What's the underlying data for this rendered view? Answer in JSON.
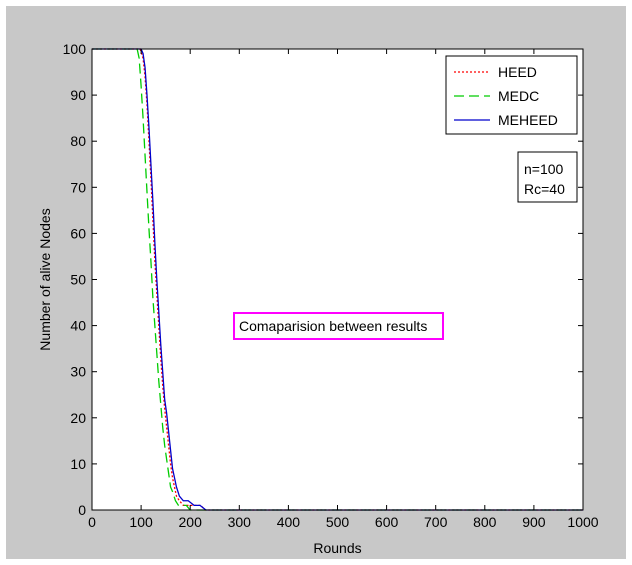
{
  "chart_data": {
    "type": "line",
    "title": "",
    "xlabel": "Rounds",
    "ylabel": "Number of alive Nodes",
    "xlim": [
      0,
      1000
    ],
    "ylim": [
      0,
      100
    ],
    "xticks": [
      0,
      100,
      200,
      300,
      400,
      500,
      600,
      700,
      800,
      900,
      1000
    ],
    "yticks": [
      0,
      10,
      20,
      30,
      40,
      50,
      60,
      70,
      80,
      90,
      100
    ],
    "grid": false,
    "legend_position": "top-right",
    "series": [
      {
        "name": "HEED",
        "color": "#ff0000",
        "dash": "dotted",
        "x": [
          0,
          98,
          104,
          108,
          112,
          116,
          120,
          124,
          128,
          132,
          136,
          140,
          144,
          148,
          152,
          156,
          160,
          164,
          168,
          172,
          178,
          186,
          196,
          210,
          222,
          230,
          1000
        ],
        "y": [
          100,
          100,
          98,
          94,
          88,
          80,
          72,
          63,
          54,
          47,
          40,
          33,
          27,
          22,
          18,
          14,
          10,
          7,
          5,
          3,
          2,
          1,
          1,
          1,
          1,
          0,
          0
        ]
      },
      {
        "name": "MEDC",
        "color": "#00cc00",
        "dash": "dashed",
        "x": [
          0,
          92,
          96,
          100,
          104,
          108,
          112,
          116,
          120,
          124,
          128,
          132,
          136,
          140,
          144,
          148,
          152,
          156,
          160,
          164,
          170,
          176,
          184,
          192,
          200,
          1000
        ],
        "y": [
          100,
          100,
          98,
          92,
          85,
          77,
          69,
          61,
          54,
          46,
          40,
          34,
          28,
          23,
          18,
          14,
          11,
          8,
          5,
          4,
          2,
          1,
          1,
          1,
          0,
          0
        ]
      },
      {
        "name": "MEHEED",
        "color": "#0000cc",
        "dash": "solid",
        "x": [
          0,
          100,
          104,
          108,
          112,
          116,
          120,
          124,
          128,
          132,
          136,
          140,
          144,
          148,
          152,
          156,
          160,
          164,
          168,
          172,
          178,
          186,
          196,
          208,
          220,
          232,
          1000
        ],
        "y": [
          100,
          100,
          99,
          96,
          90,
          83,
          75,
          67,
          58,
          50,
          43,
          36,
          30,
          24,
          21,
          17,
          13,
          9,
          7,
          5,
          3,
          2,
          2,
          1,
          1,
          0,
          0
        ]
      }
    ],
    "annotations": [
      {
        "text_lines": [
          "n=100",
          "Rc=40"
        ],
        "position": "upper-right",
        "border_color": "#000000"
      },
      {
        "text_lines": [
          "Comaparision between results"
        ],
        "position": "center",
        "border_color": "#ff00ff"
      }
    ]
  }
}
